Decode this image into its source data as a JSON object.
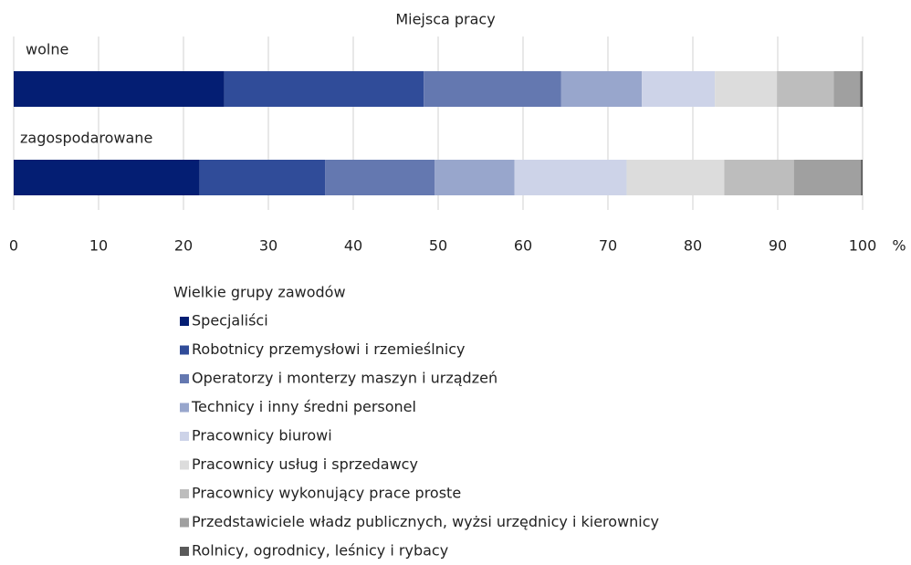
{
  "chart_data": {
    "type": "stacked_barh",
    "title": "Miejsca pracy",
    "categories": [
      "wolne",
      "zagospodarowane"
    ],
    "series": [
      {
        "name": "Specjaliści",
        "color": "#041e73",
        "values": [
          24.8,
          21.9
        ]
      },
      {
        "name": "Robotnicy przemysłowi i rzemieślnicy",
        "color": "#304c99",
        "values": [
          23.5,
          14.8
        ]
      },
      {
        "name": "Operatorzy i monterzy maszyn i urządzeń",
        "color": "#6478b0",
        "values": [
          16.2,
          12.9
        ]
      },
      {
        "name": "Technicy i inny średni personel",
        "color": "#98a6cc",
        "values": [
          9.5,
          9.4
        ]
      },
      {
        "name": "Pracownicy biurowi",
        "color": "#cdd3e8",
        "values": [
          8.6,
          13.2
        ]
      },
      {
        "name": "Pracownicy usług i sprzedawcy",
        "color": "#dcdcdc",
        "values": [
          7.3,
          11.5
        ]
      },
      {
        "name": "Pracownicy wykonujący prace proste",
        "color": "#bdbdbd",
        "values": [
          6.7,
          8.2
        ]
      },
      {
        "name": "Przedstawiciele władz publicznych, wyżsi urzędnicy i kierownicy",
        "color": "#a0a0a0",
        "values": [
          3.1,
          7.9
        ]
      },
      {
        "name": "Rolnicy, ogrodnicy, leśnicy i rybacy",
        "color": "#5a5a5a",
        "values": [
          0.3,
          0.2
        ]
      }
    ],
    "xlim": [
      0,
      100
    ],
    "xticks": [
      0,
      10,
      20,
      30,
      40,
      50,
      60,
      70,
      80,
      90,
      100
    ],
    "xlabel": "%",
    "legend_title": "Wielkie grupy zawodów",
    "grid": true
  }
}
